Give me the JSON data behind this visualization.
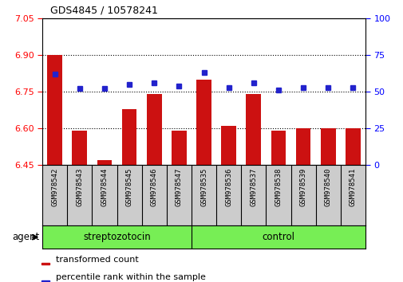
{
  "title": "GDS4845 / 10578241",
  "samples": [
    "GSM978542",
    "GSM978543",
    "GSM978544",
    "GSM978545",
    "GSM978546",
    "GSM978547",
    "GSM978535",
    "GSM978536",
    "GSM978537",
    "GSM978538",
    "GSM978539",
    "GSM978540",
    "GSM978541"
  ],
  "red_values": [
    6.9,
    6.59,
    6.47,
    6.68,
    6.74,
    6.59,
    6.8,
    6.61,
    6.74,
    6.59,
    6.6,
    6.6,
    6.6
  ],
  "blue_values": [
    62,
    52,
    52,
    55,
    56,
    54,
    63,
    53,
    56,
    51,
    53,
    53,
    53
  ],
  "ylim_left": [
    6.45,
    7.05
  ],
  "ylim_right": [
    0,
    100
  ],
  "yticks_left": [
    6.45,
    6.6,
    6.75,
    6.9,
    7.05
  ],
  "yticks_right": [
    0,
    25,
    50,
    75,
    100
  ],
  "hlines": [
    6.9,
    6.75,
    6.6
  ],
  "group1_label": "streptozotocin",
  "group2_label": "control",
  "group1_count": 6,
  "legend_red": "transformed count",
  "legend_blue": "percentile rank within the sample",
  "bar_color": "#cc1111",
  "dot_color": "#2222cc",
  "bar_baseline": 6.45,
  "bar_width": 0.6,
  "group_bg_color": "#77ee55",
  "sample_bg_color": "#cccccc",
  "xlabel_agent": "agent"
}
